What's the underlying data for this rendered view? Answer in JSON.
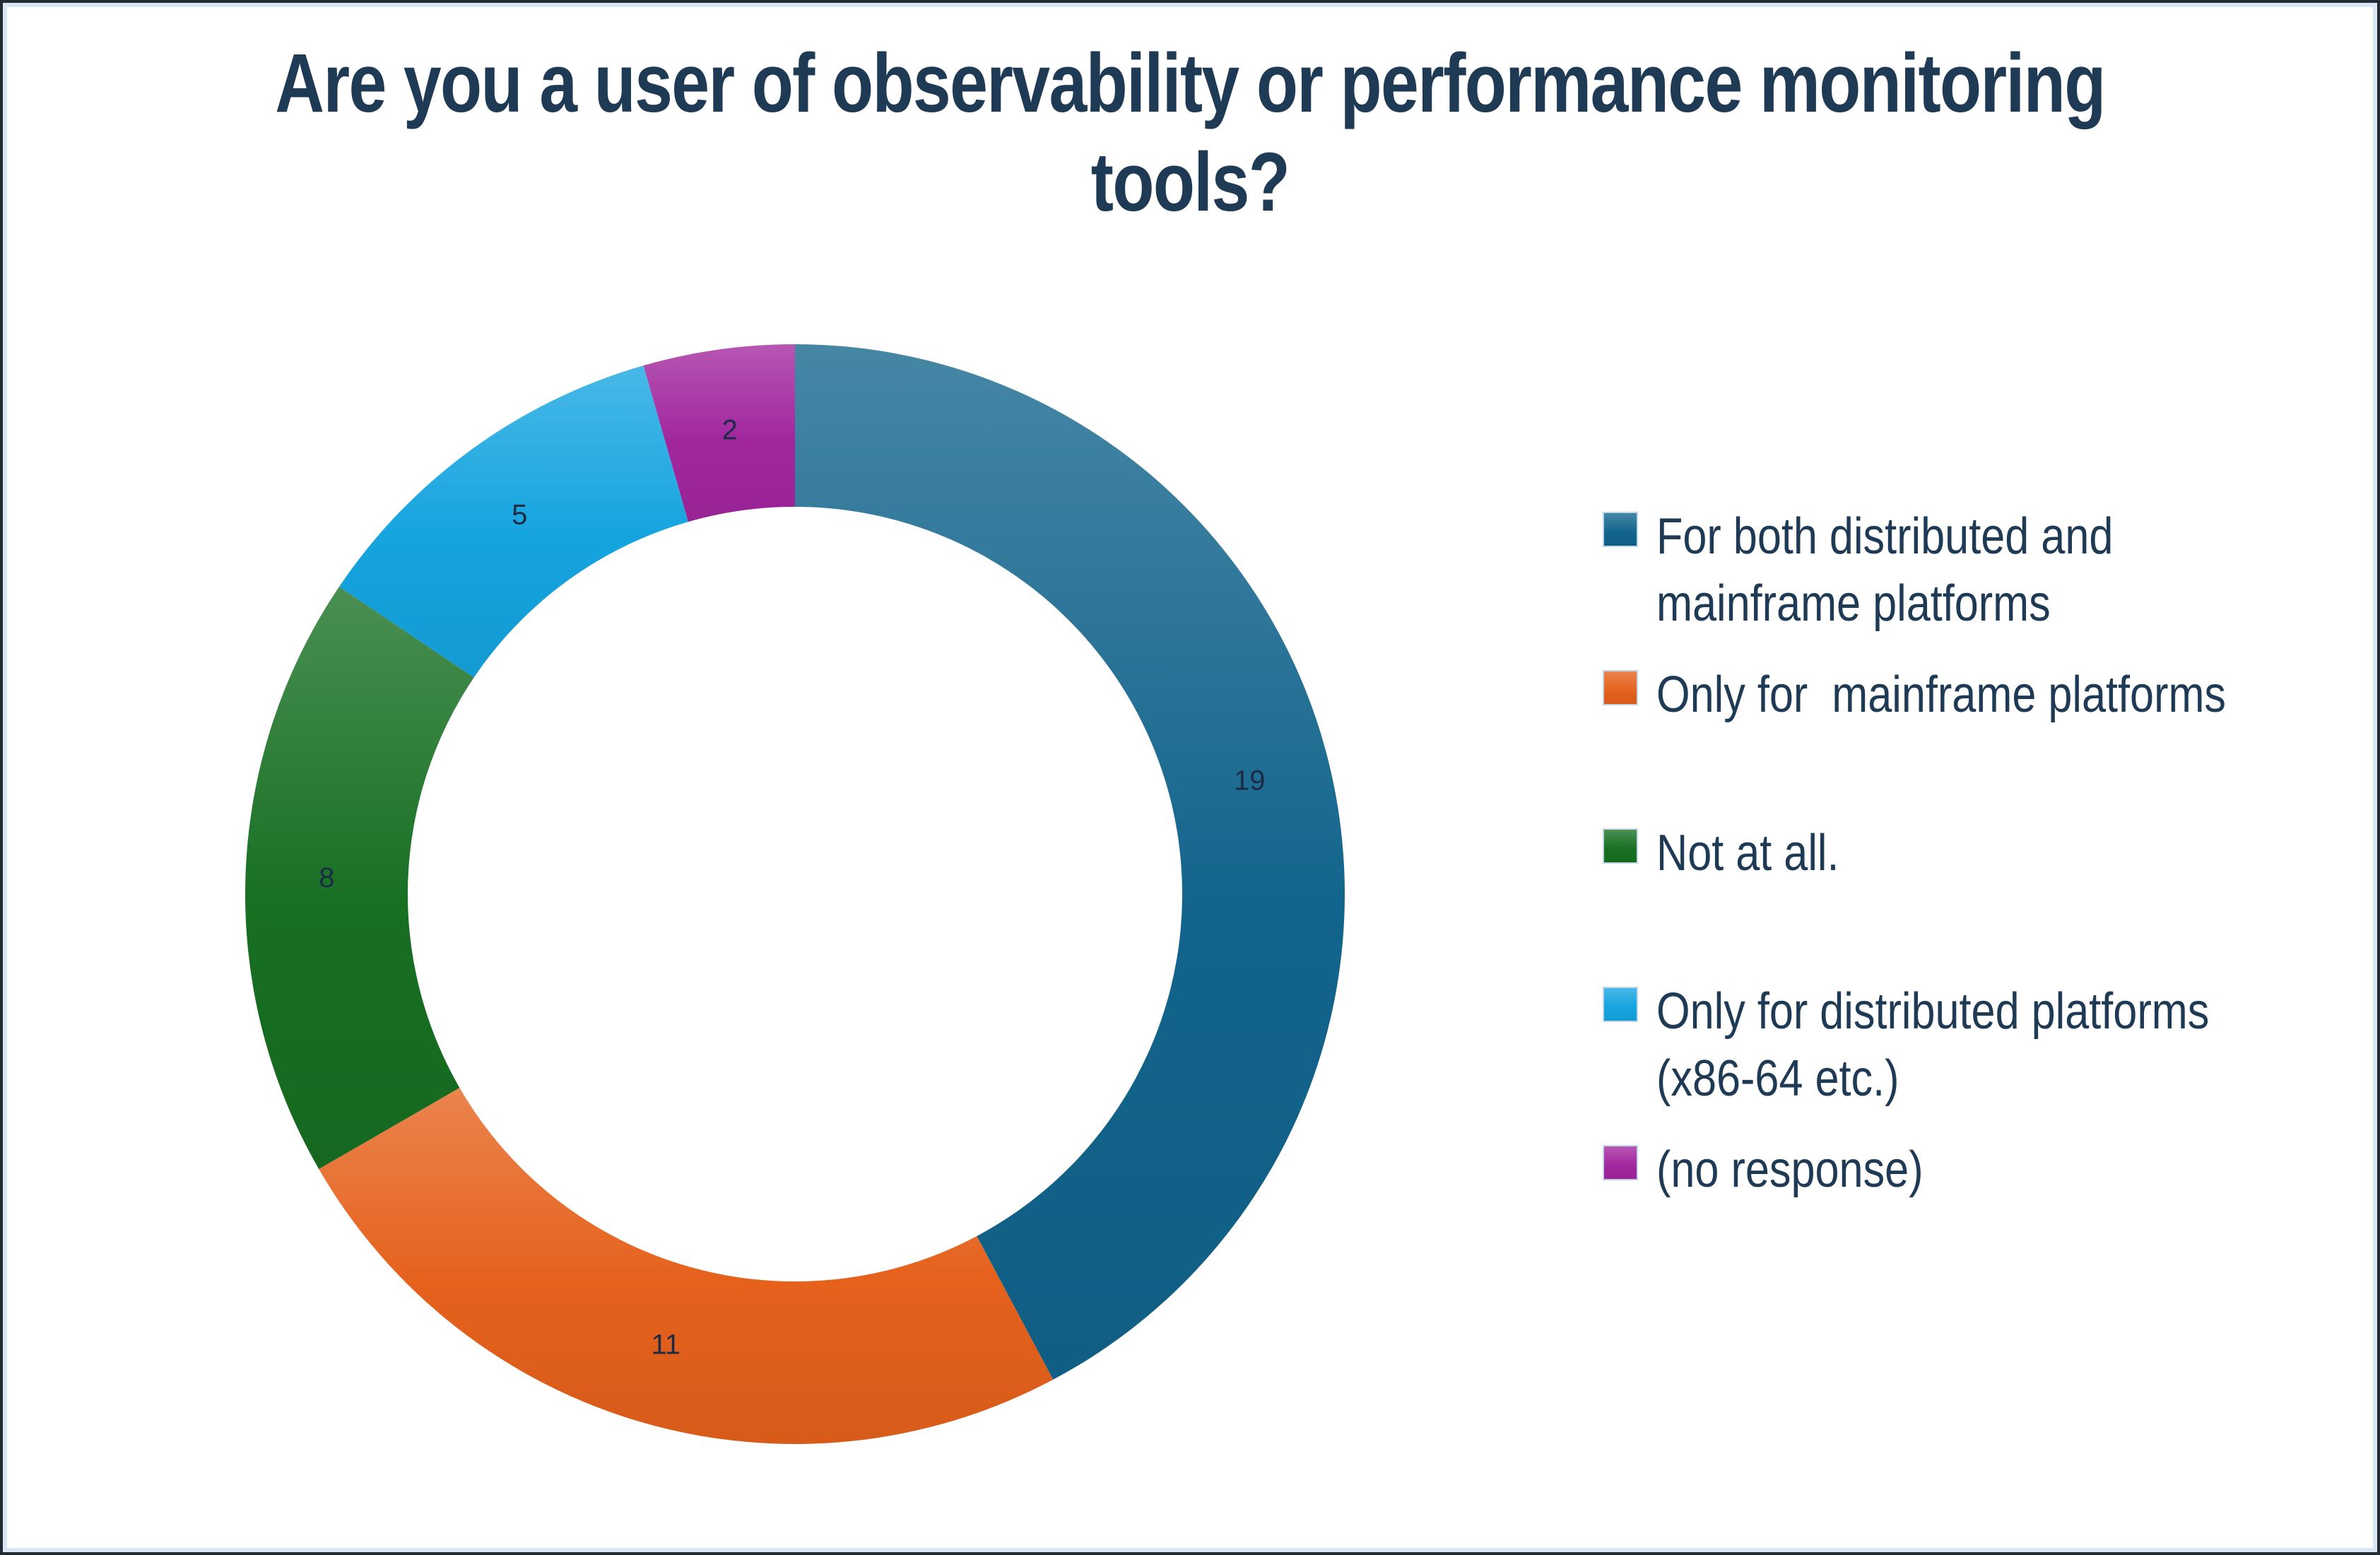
{
  "frame": {
    "outer_border_color": "#232a34",
    "inner_border_color": "#d9e6f4",
    "background": "#ffffff"
  },
  "title": "Are you a user of observability or performance monitoring tools?",
  "title_lines": [
    "Are you a user of observability or performance monitoring",
    "tools?"
  ],
  "title_color": "#1f3a55",
  "chart_data": {
    "type": "pie",
    "subtype": "donut",
    "title": "Are you a user of observability or performance monitoring tools?",
    "total": 45,
    "start_angle_deg": 0,
    "direction": "clockwise",
    "donut_hole_ratio": 0.7,
    "legend_position": "right",
    "data_label_color": "#1c2b45",
    "categories": [
      "For both distributed and mainframe platforms",
      "Only for  mainframe platforms",
      "Not at all.",
      "Only for distributed platforms (x86-64 etc.)",
      "(no response)"
    ],
    "values": [
      19,
      11,
      8,
      5,
      2
    ],
    "colors": [
      "#12648c",
      "#e5611c",
      "#176f22",
      "#15a4df",
      "#a1269e"
    ],
    "slices": [
      {
        "label": "For both distributed and mainframe platforms",
        "legend_lines": [
          "For both distributed and",
          "mainframe platforms"
        ],
        "value": 19,
        "color": "#12648c"
      },
      {
        "label": "Only for  mainframe platforms",
        "legend_lines": [
          "Only for  mainframe platforms"
        ],
        "value": 11,
        "color": "#e5611c"
      },
      {
        "label": "Not at all.",
        "legend_lines": [
          "Not at all."
        ],
        "value": 8,
        "color": "#176f22"
      },
      {
        "label": "Only for distributed platforms (x86-64 etc.)",
        "legend_lines": [
          "Only for distributed platforms",
          "(x86-64 etc.)"
        ],
        "value": 5,
        "color": "#15a4df"
      },
      {
        "label": "(no response)",
        "legend_lines": [
          "(no response)"
        ],
        "value": 2,
        "color": "#a1269e"
      }
    ]
  }
}
